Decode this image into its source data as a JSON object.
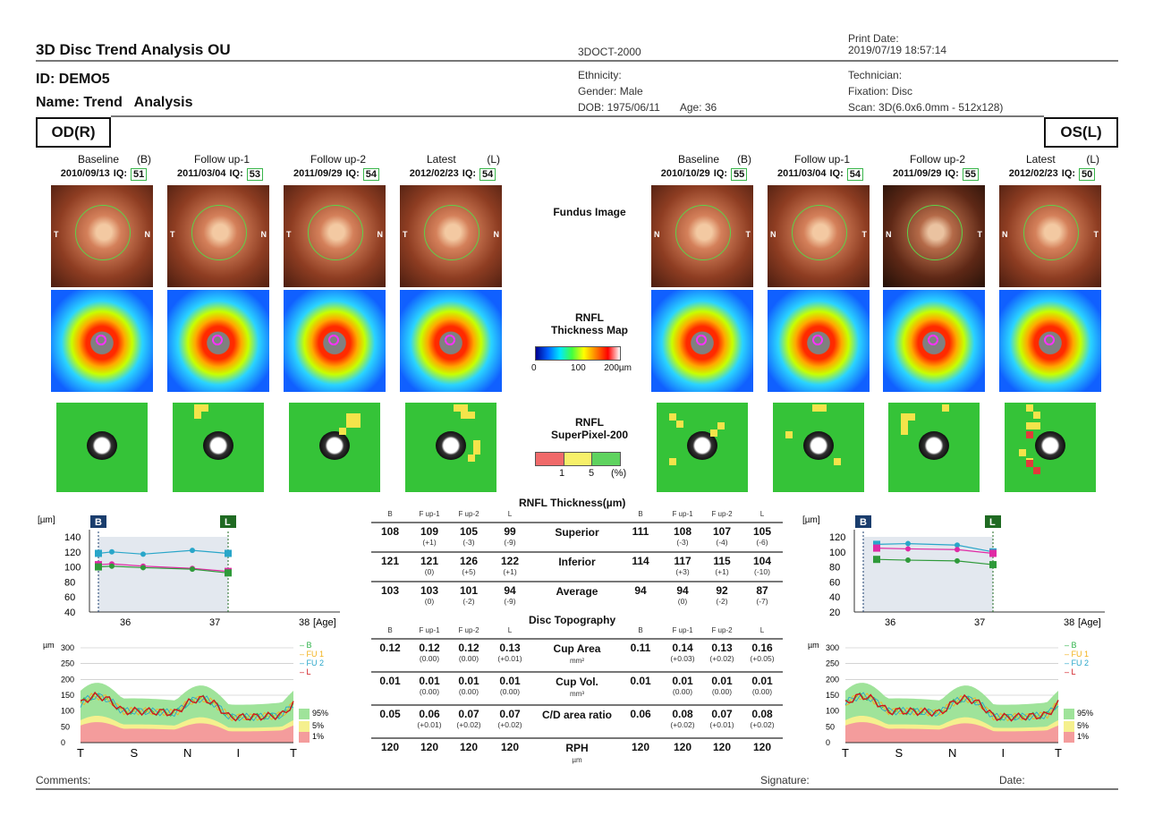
{
  "header": {
    "title": "3D Disc Trend Analysis OU",
    "device": "3DOCT-2000",
    "print_date_label": "Print Date:",
    "print_date": "2019/07/19 18:57:14",
    "id": "ID: DEMO5",
    "name": "Name: Trend   Analysis",
    "ethnicity": "Ethnicity:",
    "gender": "Gender: Male",
    "dob": "DOB: 1975/06/11",
    "age": "Age: 36",
    "technician": "Technician:",
    "fixation": "Fixation: Disc",
    "scan": "Scan: 3D(6.0x6.0mm - 512x128)"
  },
  "eyes": {
    "od": "OD(R)",
    "os": "OS(L)"
  },
  "od_columns": [
    {
      "label": "Baseline",
      "tag": "(B)",
      "date": "2010/09/13",
      "iq_label": "IQ:",
      "iq": "51"
    },
    {
      "label": "Follow up-1",
      "tag": "",
      "date": "2011/03/04",
      "iq_label": "IQ:",
      "iq": "53"
    },
    {
      "label": "Follow up-2",
      "tag": "",
      "date": "2011/09/29",
      "iq_label": "IQ:",
      "iq": "54"
    },
    {
      "label": "Latest",
      "tag": "(L)",
      "date": "2012/02/23",
      "iq_label": "IQ:",
      "iq": "54"
    }
  ],
  "os_columns": [
    {
      "label": "Baseline",
      "tag": "(B)",
      "date": "2010/10/29",
      "iq_label": "IQ:",
      "iq": "55"
    },
    {
      "label": "Follow up-1",
      "tag": "",
      "date": "2011/03/04",
      "iq_label": "IQ:",
      "iq": "54"
    },
    {
      "label": "Follow up-2",
      "tag": "",
      "date": "2011/09/29",
      "iq_label": "IQ:",
      "iq": "55"
    },
    {
      "label": "Latest",
      "tag": "(L)",
      "date": "2012/02/23",
      "iq_label": "IQ:",
      "iq": "50"
    }
  ],
  "fundus_side_labels": {
    "T": "T",
    "N": "N"
  },
  "center": {
    "fundus_label": "Fundus Image",
    "thickness_label_1": "RNFL",
    "thickness_label_2": "Thickness Map",
    "thickness_scale": [
      "0",
      "100",
      "200µm"
    ],
    "superpixel_label_1": "RNFL",
    "superpixel_label_2": "SuperPixel-200",
    "superpixel_scale": [
      "1",
      "5",
      "(%)"
    ]
  },
  "table": {
    "thickness_title": "RNFL Thickness(µm)",
    "topo_title": "Disc Topography",
    "col_headers": [
      "B",
      "F up-1",
      "F up-2",
      "L"
    ],
    "thickness_rows": [
      {
        "label": "Superior",
        "unit": "",
        "od": [
          [
            "108",
            ""
          ],
          [
            "109",
            "(+1)"
          ],
          [
            "105",
            "(-3)"
          ],
          [
            "99",
            "(-9)"
          ]
        ],
        "os": [
          [
            "111",
            ""
          ],
          [
            "108",
            "(-3)"
          ],
          [
            "107",
            "(-4)"
          ],
          [
            "105",
            "(-6)"
          ]
        ]
      },
      {
        "label": "Inferior",
        "unit": "",
        "od": [
          [
            "121",
            ""
          ],
          [
            "121",
            "(0)"
          ],
          [
            "126",
            "(+5)"
          ],
          [
            "122",
            "(+1)"
          ]
        ],
        "os": [
          [
            "114",
            ""
          ],
          [
            "117",
            "(+3)"
          ],
          [
            "115",
            "(+1)"
          ],
          [
            "104",
            "(-10)"
          ]
        ]
      },
      {
        "label": "Average",
        "unit": "",
        "od": [
          [
            "103",
            ""
          ],
          [
            "103",
            "(0)"
          ],
          [
            "101",
            "(-2)"
          ],
          [
            "94",
            "(-9)"
          ]
        ],
        "os": [
          [
            "94",
            ""
          ],
          [
            "94",
            "(0)"
          ],
          [
            "92",
            "(-2)"
          ],
          [
            "87",
            "(-7)"
          ]
        ]
      }
    ],
    "topo_rows": [
      {
        "label": "Cup Area",
        "unit": "mm²",
        "od": [
          [
            "0.12",
            ""
          ],
          [
            "0.12",
            "(0.00)"
          ],
          [
            "0.12",
            "(0.00)"
          ],
          [
            "0.13",
            "(+0.01)"
          ]
        ],
        "os": [
          [
            "0.11",
            ""
          ],
          [
            "0.14",
            "(+0.03)"
          ],
          [
            "0.13",
            "(+0.02)"
          ],
          [
            "0.16",
            "(+0.05)"
          ]
        ]
      },
      {
        "label": "Cup Vol.",
        "unit": "mm³",
        "od": [
          [
            "0.01",
            ""
          ],
          [
            "0.01",
            "(0.00)"
          ],
          [
            "0.01",
            "(0.00)"
          ],
          [
            "0.01",
            "(0.00)"
          ]
        ],
        "os": [
          [
            "0.01",
            ""
          ],
          [
            "0.01",
            "(0.00)"
          ],
          [
            "0.01",
            "(0.00)"
          ],
          [
            "0.01",
            "(0.00)"
          ]
        ]
      },
      {
        "label": "C/D area ratio",
        "unit": "",
        "od": [
          [
            "0.05",
            ""
          ],
          [
            "0.06",
            "(+0.01)"
          ],
          [
            "0.07",
            "(+0.02)"
          ],
          [
            "0.07",
            "(+0.02)"
          ]
        ],
        "os": [
          [
            "0.06",
            ""
          ],
          [
            "0.08",
            "(+0.02)"
          ],
          [
            "0.07",
            "(+0.01)"
          ],
          [
            "0.08",
            "(+0.02)"
          ]
        ]
      },
      {
        "label": "RPH",
        "unit": "µm",
        "od": [
          [
            "120",
            ""
          ],
          [
            "120",
            ""
          ],
          [
            "120",
            ""
          ],
          [
            "120",
            ""
          ]
        ],
        "os": [
          [
            "120",
            ""
          ],
          [
            "120",
            ""
          ],
          [
            "120",
            ""
          ],
          [
            "120",
            ""
          ]
        ]
      }
    ]
  },
  "chart_data": [
    {
      "type": "line",
      "eye": "OD",
      "ylabel": "[µm]",
      "xlabel": "[Age]",
      "ylim": [
        40,
        140
      ],
      "yticks": [
        "140",
        "120",
        "100",
        "80",
        "60",
        "40"
      ],
      "xticks": [
        "36",
        "37",
        "38"
      ],
      "markers": [
        "B",
        "L"
      ],
      "series": [
        {
          "color": "#29a6c9",
          "x": [
            35.7,
            35.85,
            36.2,
            36.75,
            37.15
          ],
          "y": [
            118,
            120,
            117,
            122,
            118
          ]
        },
        {
          "color": "#e02aa5",
          "x": [
            35.7,
            35.85,
            36.2,
            36.75,
            37.15
          ],
          "y": [
            103,
            104,
            101,
            98,
            94
          ]
        },
        {
          "color": "#2f9a3a",
          "x": [
            35.7,
            35.85,
            36.2,
            36.75,
            37.15
          ],
          "y": [
            100,
            101,
            99,
            97,
            92
          ]
        }
      ]
    },
    {
      "type": "line",
      "eye": "OS",
      "ylabel": "[µm]",
      "xlabel": "[Age]",
      "ylim": [
        20,
        120
      ],
      "yticks": [
        "120",
        "100",
        "80",
        "60",
        "40",
        "20"
      ],
      "xticks": [
        "36",
        "37",
        "38"
      ],
      "markers": [
        "B",
        "L"
      ],
      "series": [
        {
          "color": "#29a6c9",
          "x": [
            35.85,
            36.2,
            36.75,
            37.15
          ],
          "y": [
            110,
            111,
            109,
            100
          ]
        },
        {
          "color": "#e02aa5",
          "x": [
            35.85,
            36.2,
            36.75,
            37.15
          ],
          "y": [
            105,
            104,
            103,
            98
          ]
        },
        {
          "color": "#2f9a3a",
          "x": [
            35.85,
            36.2,
            36.75,
            37.15
          ],
          "y": [
            90,
            89,
            88,
            83
          ]
        }
      ]
    },
    {
      "type": "area",
      "eye": "OD",
      "ylabel": "µm",
      "yticks": [
        "300",
        "250",
        "200",
        "150",
        "100",
        "50",
        "0"
      ],
      "xticks": [
        "T",
        "S",
        "N",
        "I",
        "T"
      ],
      "legend": [
        "B",
        "FU 1",
        "FU 2",
        "L"
      ],
      "percentile_legend": [
        "95%",
        "5%",
        "1%"
      ]
    },
    {
      "type": "area",
      "eye": "OS",
      "ylabel": "µm",
      "yticks": [
        "300",
        "250",
        "200",
        "150",
        "100",
        "50",
        "0"
      ],
      "xticks": [
        "T",
        "S",
        "N",
        "I",
        "T"
      ],
      "legend": [
        "B",
        "FU 1",
        "FU 2",
        "L"
      ],
      "percentile_legend": [
        "95%",
        "5%",
        "1%"
      ]
    }
  ],
  "footer": {
    "comments": "Comments:",
    "signature": "Signature:",
    "date": "Date:"
  }
}
